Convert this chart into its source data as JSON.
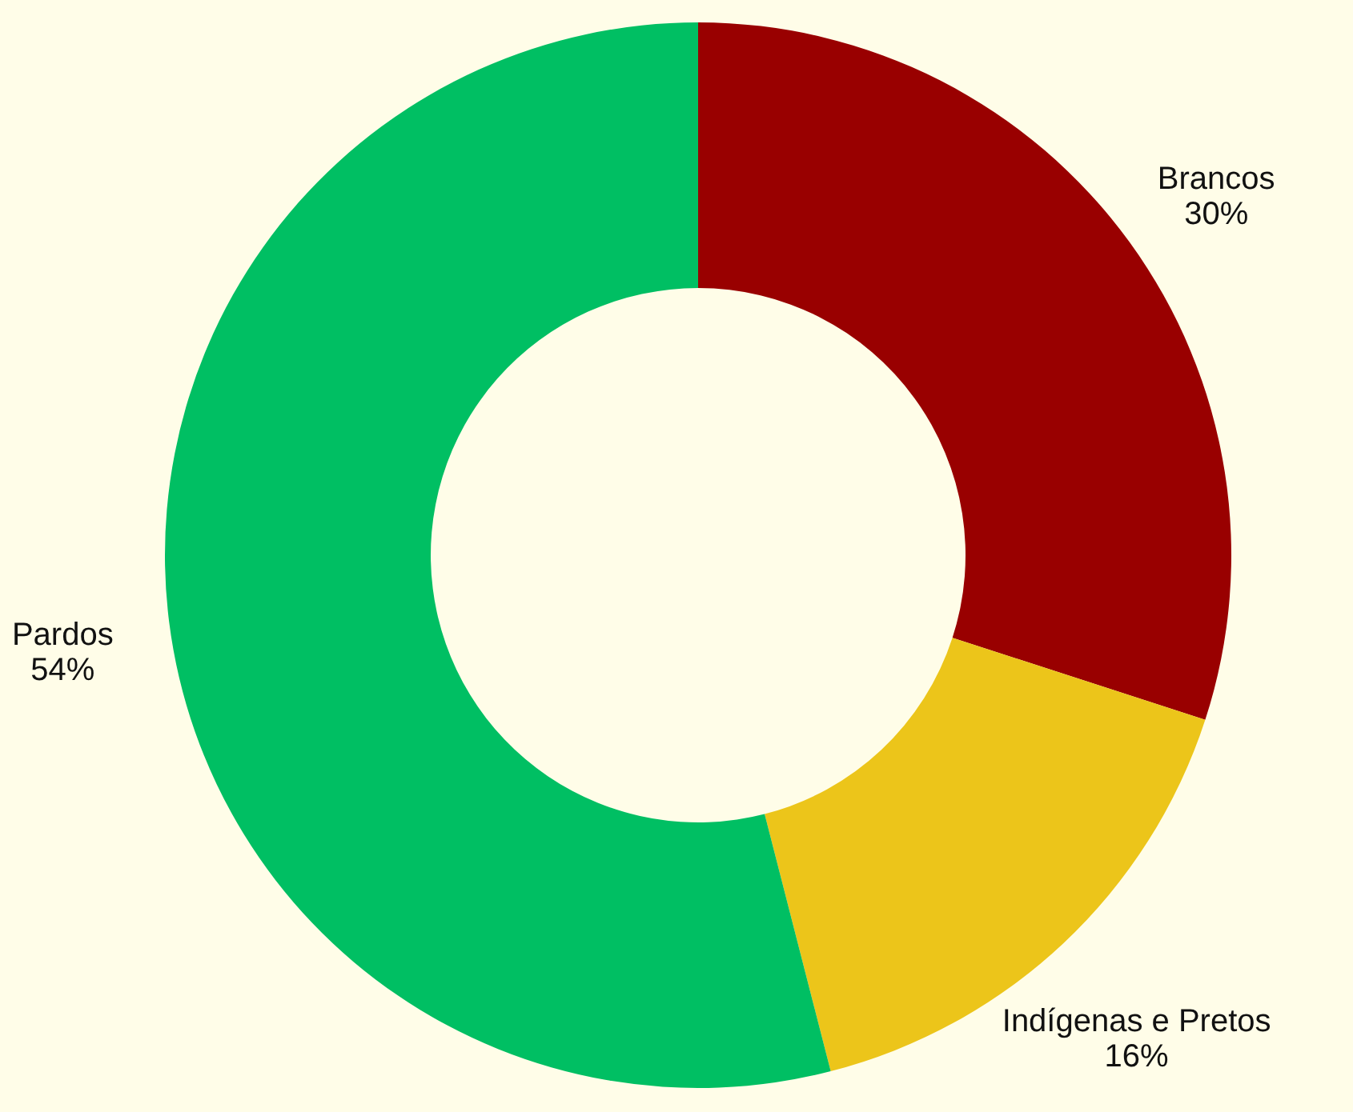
{
  "chart_data": {
    "type": "donut",
    "categories": [
      "Brancos",
      "Indígenas e Pretos",
      "Pardos"
    ],
    "values": [
      30,
      16,
      54
    ],
    "colors": [
      "#990000",
      "#ecc51a",
      "#00bf63"
    ],
    "value_labels": [
      "30%",
      "16%",
      "54%"
    ]
  }
}
